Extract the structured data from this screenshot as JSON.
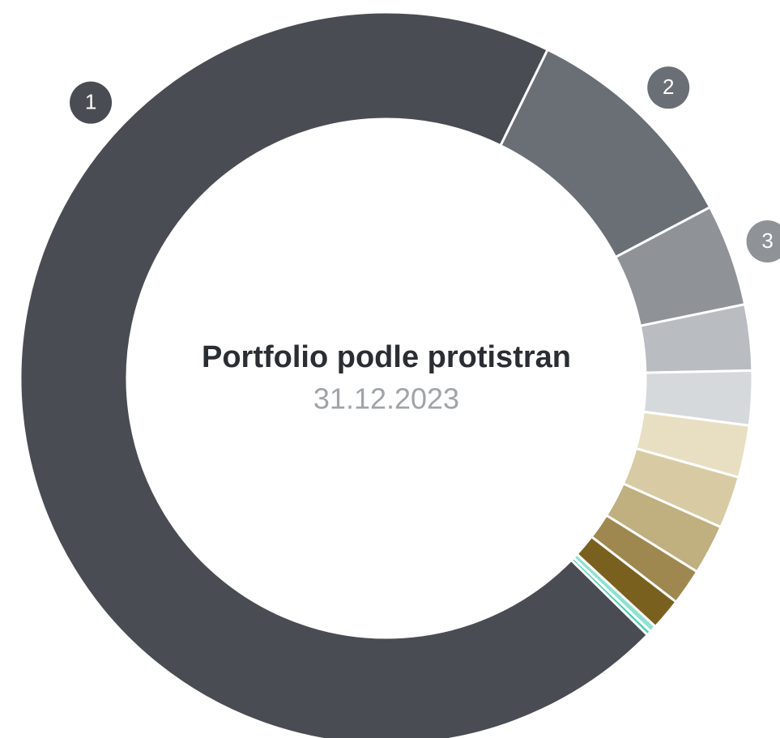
{
  "chart_data": {
    "type": "donut",
    "title": "Portfolio podle protistran",
    "subtitle": "31.12.2023",
    "categories": [
      "1",
      "2",
      "3",
      null,
      null,
      null,
      null,
      null,
      null,
      null,
      null,
      null
    ],
    "values": [
      69.9,
      10,
      4.5,
      2.9,
      2.4,
      2.3,
      2.3,
      2.2,
      1.6,
      1.4,
      0.3,
      0.2
    ],
    "colors": [
      "#494d53",
      "#6a6f75",
      "#8f9398",
      "#b9bcc0",
      "#d6d9db",
      "#e8dfc3",
      "#d8cba3",
      "#c0af7f",
      "#9f8850",
      "#7a601e",
      "#8de2d0",
      "#4fcfb5"
    ]
  }
}
